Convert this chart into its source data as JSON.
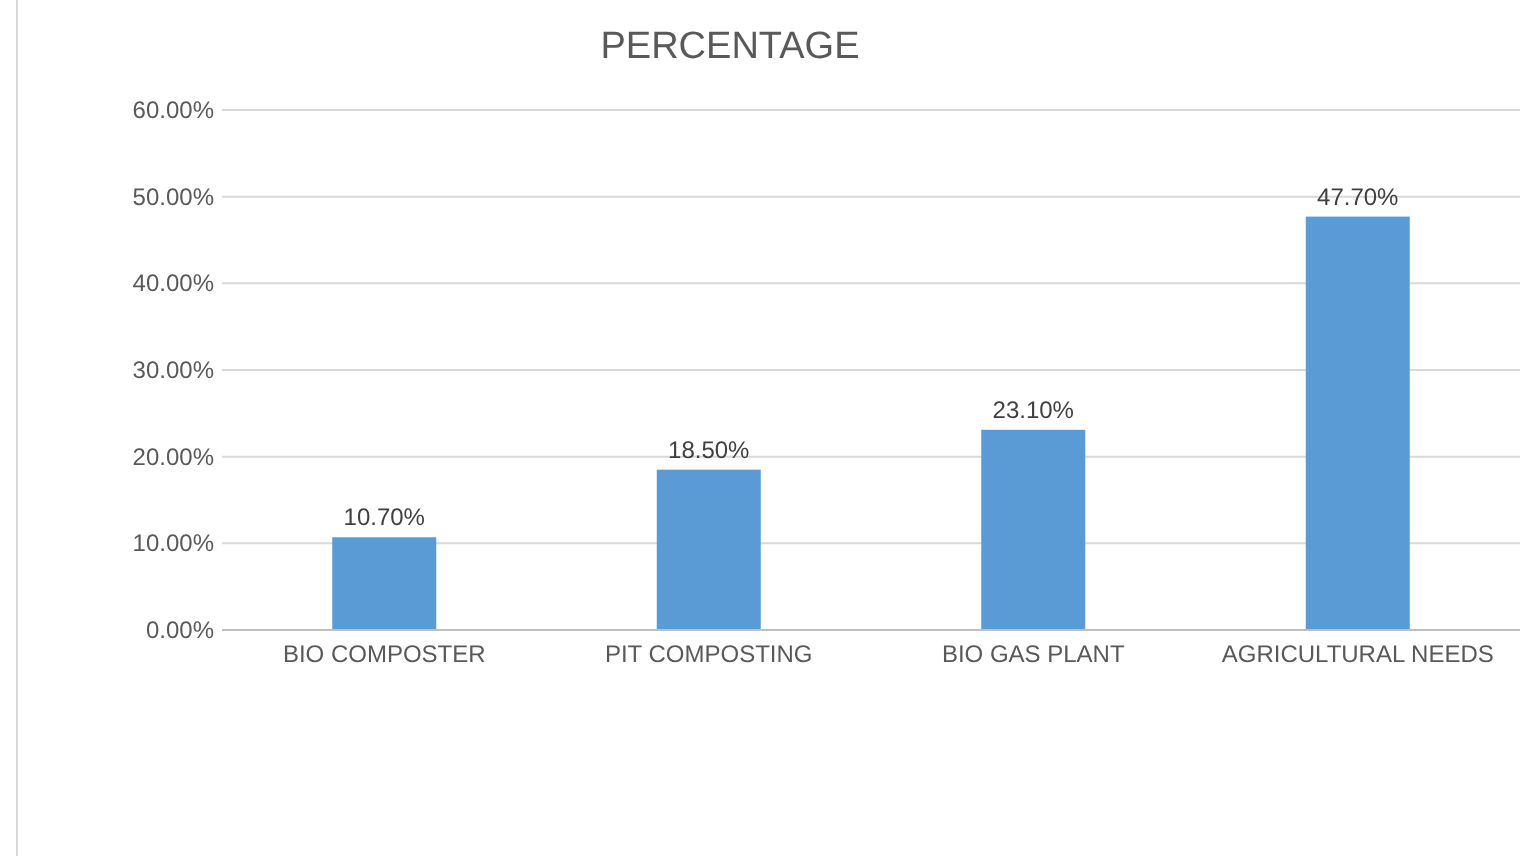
{
  "chart_data": {
    "type": "bar",
    "title": "PERCENTAGE",
    "categories": [
      "BIO COMPOSTER",
      "PIT COMPOSTING",
      "BIO GAS PLANT",
      "AGRICULTURAL NEEDS"
    ],
    "values": [
      10.7,
      18.5,
      23.1,
      47.7
    ],
    "value_labels": [
      "10.70%",
      "18.50%",
      "23.10%",
      "47.70%"
    ],
    "color": "#5b9bd5",
    "ylim": [
      0,
      60
    ],
    "yticks": [
      {
        "value": 0,
        "label": "0.00%"
      },
      {
        "value": 10,
        "label": "10.00%"
      },
      {
        "value": 20,
        "label": "20.00%"
      },
      {
        "value": 30,
        "label": "30.00%"
      },
      {
        "value": 40,
        "label": "40.00%"
      },
      {
        "value": 50,
        "label": "50.00%"
      },
      {
        "value": 60,
        "label": "60.00%"
      }
    ],
    "grid": "y"
  }
}
